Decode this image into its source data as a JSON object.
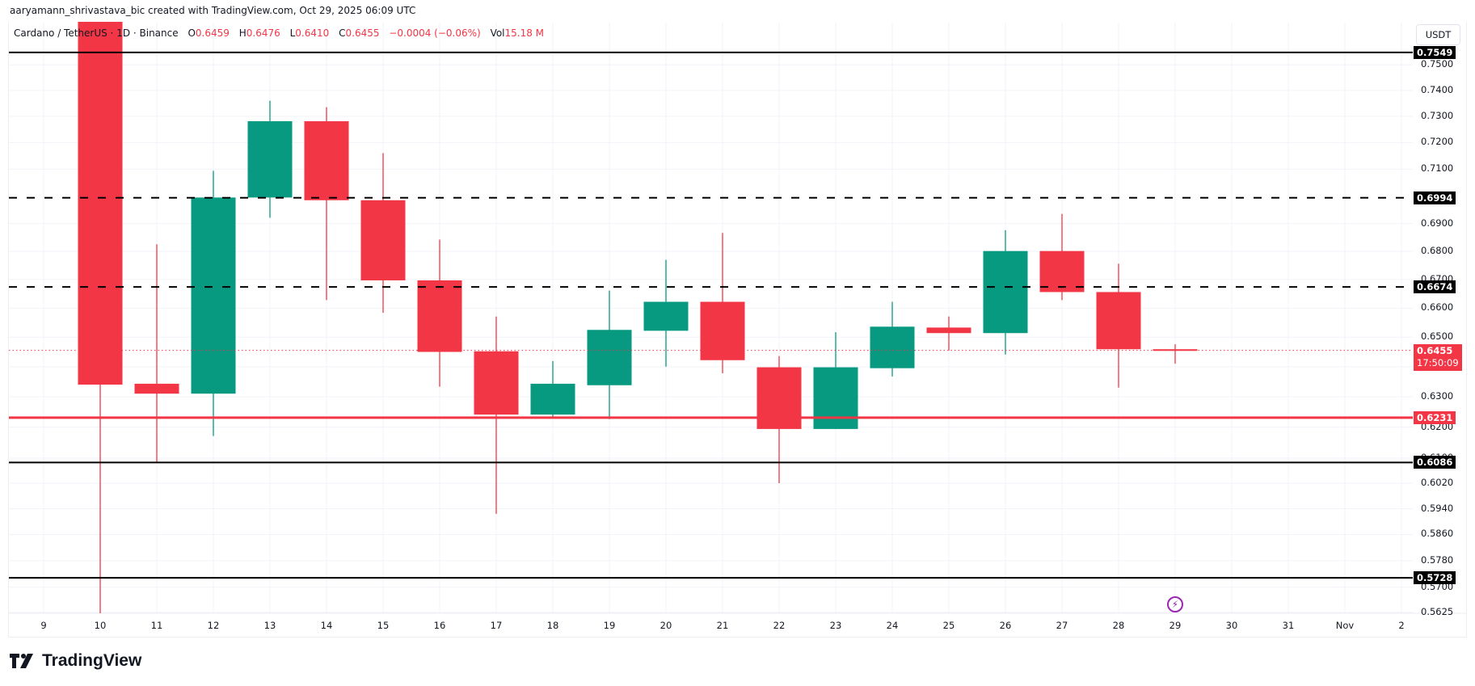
{
  "attribution": "aaryamann_shrivastava_bic created with TradingView.com, Oct 29, 2025 06:09 UTC",
  "legend": {
    "symbol": "Cardano / TetherUS · 1D · Binance",
    "open_label": "O",
    "open": "0.6459",
    "high_label": "H",
    "high": "0.6476",
    "low_label": "L",
    "low": "0.6410",
    "close_label": "C",
    "close": "0.6455",
    "change": "−0.0004 (−0.06%)",
    "vol_label": "Vol",
    "vol": "15.18 M"
  },
  "price_axis": {
    "currency": "USDT",
    "ticks": [
      "0.7500",
      "0.7400",
      "0.7300",
      "0.7200",
      "0.7100",
      "0.6900",
      "0.6800",
      "0.6700",
      "0.6600",
      "0.6500",
      "0.6400",
      "0.6300",
      "0.6200",
      "0.6100",
      "0.6020",
      "0.5940",
      "0.5860",
      "0.5780",
      "0.5700",
      "0.5625"
    ],
    "current_price": "0.6455",
    "countdown": "17:50:09"
  },
  "level_tags": [
    {
      "value": "0.7549",
      "style": "solid-black"
    },
    {
      "value": "0.6994",
      "style": "dashed-black"
    },
    {
      "value": "0.6674",
      "style": "dashed-black"
    },
    {
      "value": "0.6231",
      "style": "solid-red"
    },
    {
      "value": "0.6086",
      "style": "solid-black"
    },
    {
      "value": "0.5728",
      "style": "solid-black"
    }
  ],
  "time_axis": [
    "9",
    "10",
    "11",
    "12",
    "13",
    "14",
    "15",
    "16",
    "17",
    "18",
    "19",
    "20",
    "21",
    "22",
    "23",
    "24",
    "25",
    "26",
    "27",
    "28",
    "29",
    "30",
    "31",
    "Nov",
    "2"
  ],
  "event_icon": "lightning-event-icon",
  "logo_text": "TradingView",
  "colors": {
    "up": "#089981",
    "down": "#f23645",
    "level_black": "#000000",
    "level_red": "#f23645",
    "event": "#9c27b0"
  },
  "chart_data": {
    "type": "candlestick",
    "title": "Cardano / TetherUS · 1D · Binance",
    "xlabel": "",
    "ylabel": "USDT",
    "scale": "log",
    "ylim": [
      0.5625,
      0.7549
    ],
    "grid": true,
    "categories": [
      "Oct 10",
      "Oct 11",
      "Oct 12",
      "Oct 13",
      "Oct 14",
      "Oct 15",
      "Oct 16",
      "Oct 17",
      "Oct 18",
      "Oct 19",
      "Oct 20",
      "Oct 21",
      "Oct 22",
      "Oct 23",
      "Oct 24",
      "Oct 25",
      "Oct 26",
      "Oct 27",
      "Oct 28",
      "Oct 29"
    ],
    "candles": [
      {
        "date": "10",
        "o": 0.79,
        "h": 0.8,
        "l": 0.56,
        "c": 0.634
      },
      {
        "date": "11",
        "o": 0.6343,
        "h": 0.6825,
        "l": 0.6085,
        "c": 0.631
      },
      {
        "date": "12",
        "o": 0.631,
        "h": 0.7094,
        "l": 0.6171,
        "c": 0.6995
      },
      {
        "date": "13",
        "o": 0.6995,
        "h": 0.736,
        "l": 0.6921,
        "c": 0.7281
      },
      {
        "date": "14",
        "o": 0.7281,
        "h": 0.7335,
        "l": 0.6628,
        "c": 0.6985
      },
      {
        "date": "15",
        "o": 0.6985,
        "h": 0.716,
        "l": 0.6584,
        "c": 0.6697
      },
      {
        "date": "16",
        "o": 0.6697,
        "h": 0.6842,
        "l": 0.6333,
        "c": 0.645
      },
      {
        "date": "17",
        "o": 0.6452,
        "h": 0.6571,
        "l": 0.5924,
        "c": 0.6241
      },
      {
        "date": "18",
        "o": 0.6241,
        "h": 0.6419,
        "l": 0.6234,
        "c": 0.6343
      },
      {
        "date": "19",
        "o": 0.6338,
        "h": 0.6661,
        "l": 0.6226,
        "c": 0.6525
      },
      {
        "date": "20",
        "o": 0.6522,
        "h": 0.677,
        "l": 0.64,
        "c": 0.6622
      },
      {
        "date": "21",
        "o": 0.6622,
        "h": 0.6866,
        "l": 0.6378,
        "c": 0.6422
      },
      {
        "date": "22",
        "o": 0.6398,
        "h": 0.6436,
        "l": 0.602,
        "c": 0.6194
      },
      {
        "date": "23",
        "o": 0.6194,
        "h": 0.6517,
        "l": 0.6194,
        "c": 0.6398
      },
      {
        "date": "24",
        "o": 0.6395,
        "h": 0.6622,
        "l": 0.6367,
        "c": 0.6536
      },
      {
        "date": "25",
        "o": 0.6533,
        "h": 0.6571,
        "l": 0.6455,
        "c": 0.6514
      },
      {
        "date": "26",
        "o": 0.6514,
        "h": 0.6876,
        "l": 0.6441,
        "c": 0.6801
      },
      {
        "date": "27",
        "o": 0.6801,
        "h": 0.6935,
        "l": 0.6628,
        "c": 0.6656
      },
      {
        "date": "28",
        "o": 0.6656,
        "h": 0.6756,
        "l": 0.633,
        "c": 0.6459
      },
      {
        "date": "29",
        "o": 0.6459,
        "h": 0.6476,
        "l": 0.641,
        "c": 0.6455
      }
    ],
    "horizontal_levels": [
      {
        "price": 0.7549,
        "style": "solid",
        "color": "#000000"
      },
      {
        "price": 0.6994,
        "style": "dashed",
        "color": "#000000"
      },
      {
        "price": 0.6674,
        "style": "dashed",
        "color": "#000000"
      },
      {
        "price": 0.6231,
        "style": "solid",
        "color": "#f23645"
      },
      {
        "price": 0.6086,
        "style": "solid",
        "color": "#000000"
      },
      {
        "price": 0.5728,
        "style": "solid",
        "color": "#000000"
      }
    ],
    "last_price": 0.6455
  }
}
